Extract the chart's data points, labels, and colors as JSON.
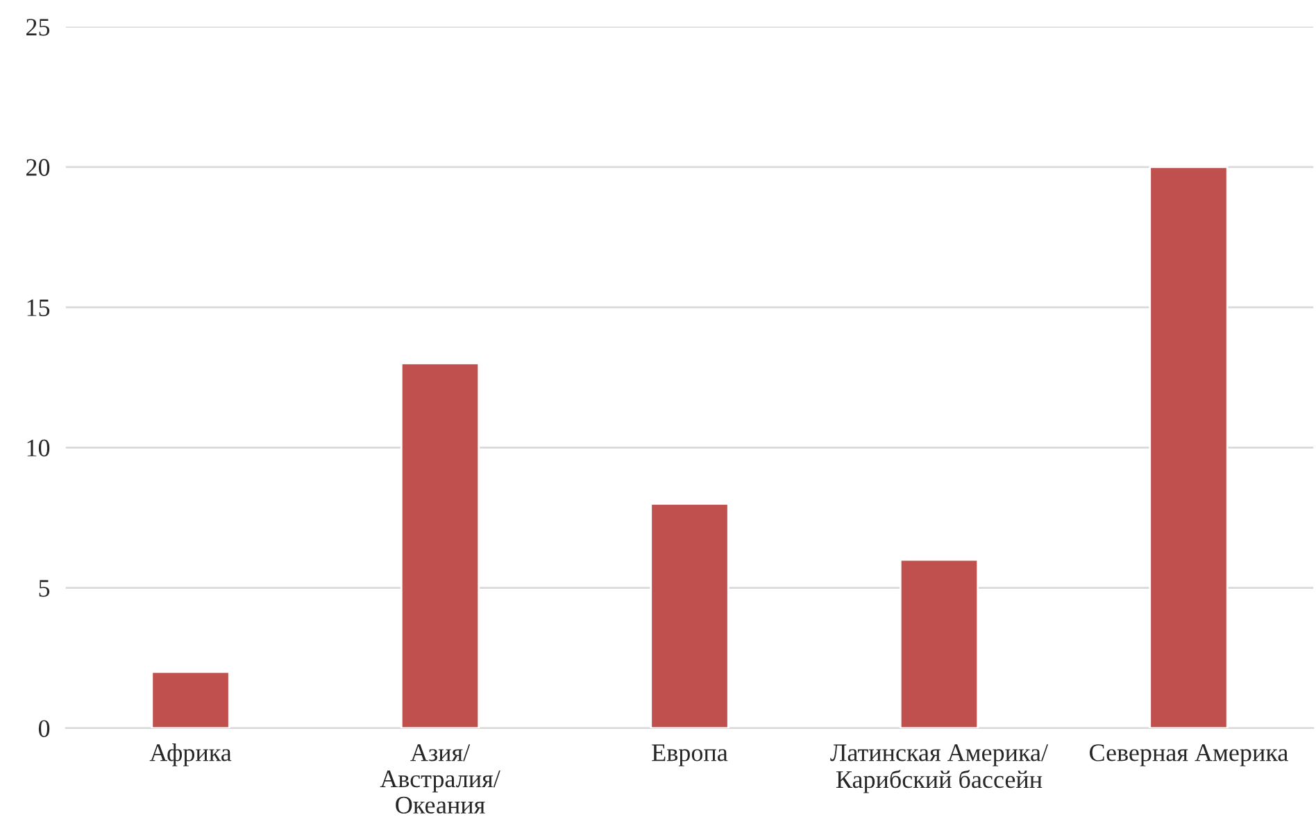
{
  "chart_data": {
    "type": "bar",
    "categories": [
      "Африка",
      "Азия/\nАвстралия/\nОкеания",
      "Европа",
      "Латинская Америка/\nКарибский бассейн",
      "Северная Америка"
    ],
    "values": [
      2,
      13,
      8,
      6,
      20
    ],
    "color": "#c0504d",
    "ylim": [
      0,
      25
    ],
    "yticks": [
      0,
      5,
      10,
      15,
      20,
      25
    ],
    "grid": "y"
  }
}
